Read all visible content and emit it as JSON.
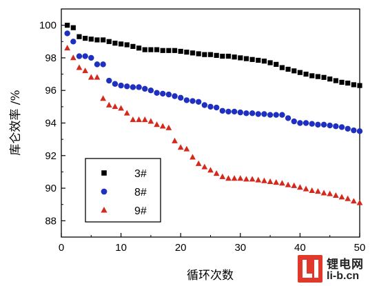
{
  "chart_data": {
    "type": "scatter",
    "xlabel": "循环次数",
    "ylabel": "库仑效率 /%",
    "xlim": [
      0,
      50
    ],
    "ylim": [
      87,
      101
    ],
    "xticks": [
      0,
      10,
      20,
      30,
      40,
      50
    ],
    "yticks": [
      88,
      90,
      92,
      94,
      96,
      98,
      100
    ],
    "grid": false,
    "legend_position": "bottom-left",
    "series": [
      {
        "name": "3#",
        "marker": "square",
        "color": "#000000",
        "x": [
          1,
          2,
          3,
          4,
          5,
          6,
          7,
          8,
          9,
          10,
          11,
          12,
          13,
          14,
          15,
          16,
          17,
          18,
          19,
          20,
          21,
          22,
          23,
          24,
          25,
          26,
          27,
          28,
          29,
          30,
          31,
          32,
          33,
          34,
          35,
          36,
          37,
          38,
          39,
          40,
          41,
          42,
          43,
          44,
          45,
          46,
          47,
          48,
          49,
          50
        ],
        "y": [
          100.0,
          99.85,
          99.3,
          99.2,
          99.15,
          99.1,
          99.1,
          99.0,
          98.9,
          98.85,
          98.8,
          98.7,
          98.6,
          98.5,
          98.5,
          98.5,
          98.45,
          98.45,
          98.45,
          98.4,
          98.35,
          98.3,
          98.25,
          98.2,
          98.2,
          98.15,
          98.1,
          98.1,
          98.05,
          98.0,
          97.95,
          97.9,
          97.85,
          97.8,
          97.7,
          97.6,
          97.4,
          97.3,
          97.2,
          97.1,
          97.0,
          96.9,
          96.85,
          96.8,
          96.7,
          96.6,
          96.5,
          96.45,
          96.35,
          96.3
        ]
      },
      {
        "name": "8#",
        "marker": "circle",
        "color": "#1f2fbf",
        "x": [
          1,
          2,
          3,
          4,
          5,
          6,
          7,
          8,
          9,
          10,
          11,
          12,
          13,
          14,
          15,
          16,
          17,
          18,
          19,
          20,
          21,
          22,
          23,
          24,
          25,
          26,
          27,
          28,
          29,
          30,
          31,
          32,
          33,
          34,
          35,
          36,
          37,
          38,
          39,
          40,
          41,
          42,
          43,
          44,
          45,
          46,
          47,
          48,
          49,
          50
        ],
        "y": [
          99.5,
          99.0,
          98.1,
          98.1,
          98.0,
          97.6,
          97.6,
          96.6,
          96.4,
          96.3,
          96.25,
          96.2,
          96.2,
          96.1,
          96.0,
          95.85,
          95.8,
          95.75,
          95.65,
          95.55,
          95.4,
          95.35,
          95.3,
          95.1,
          95.0,
          94.95,
          94.75,
          94.7,
          94.7,
          94.65,
          94.6,
          94.6,
          94.55,
          94.55,
          94.5,
          94.5,
          94.5,
          94.3,
          94.1,
          94.0,
          94.0,
          93.95,
          93.9,
          93.9,
          93.85,
          93.8,
          93.75,
          93.65,
          93.55,
          93.5
        ]
      },
      {
        "name": "9#",
        "marker": "triangle",
        "color": "#d42a1e",
        "x": [
          1,
          2,
          3,
          4,
          5,
          6,
          7,
          8,
          9,
          10,
          11,
          12,
          13,
          14,
          15,
          16,
          17,
          18,
          19,
          20,
          21,
          22,
          23,
          24,
          25,
          26,
          27,
          28,
          29,
          30,
          31,
          32,
          33,
          34,
          35,
          36,
          37,
          38,
          39,
          40,
          41,
          42,
          43,
          44,
          45,
          46,
          47,
          48,
          49,
          50
        ],
        "y": [
          98.6,
          98.0,
          97.4,
          97.2,
          96.8,
          96.8,
          95.5,
          95.1,
          95.0,
          94.9,
          94.6,
          94.2,
          94.2,
          94.2,
          94.1,
          93.9,
          93.8,
          93.7,
          92.9,
          92.5,
          92.4,
          91.9,
          91.5,
          91.3,
          91.1,
          90.9,
          90.7,
          90.6,
          90.6,
          90.6,
          90.55,
          90.55,
          90.5,
          90.45,
          90.4,
          90.35,
          90.3,
          90.2,
          90.15,
          90.05,
          89.95,
          89.85,
          89.8,
          89.7,
          89.65,
          89.55,
          89.45,
          89.35,
          89.2,
          89.1
        ]
      }
    ]
  },
  "watermark": {
    "site_name_cn": "锂电网",
    "site_url": "li-b.cn"
  }
}
